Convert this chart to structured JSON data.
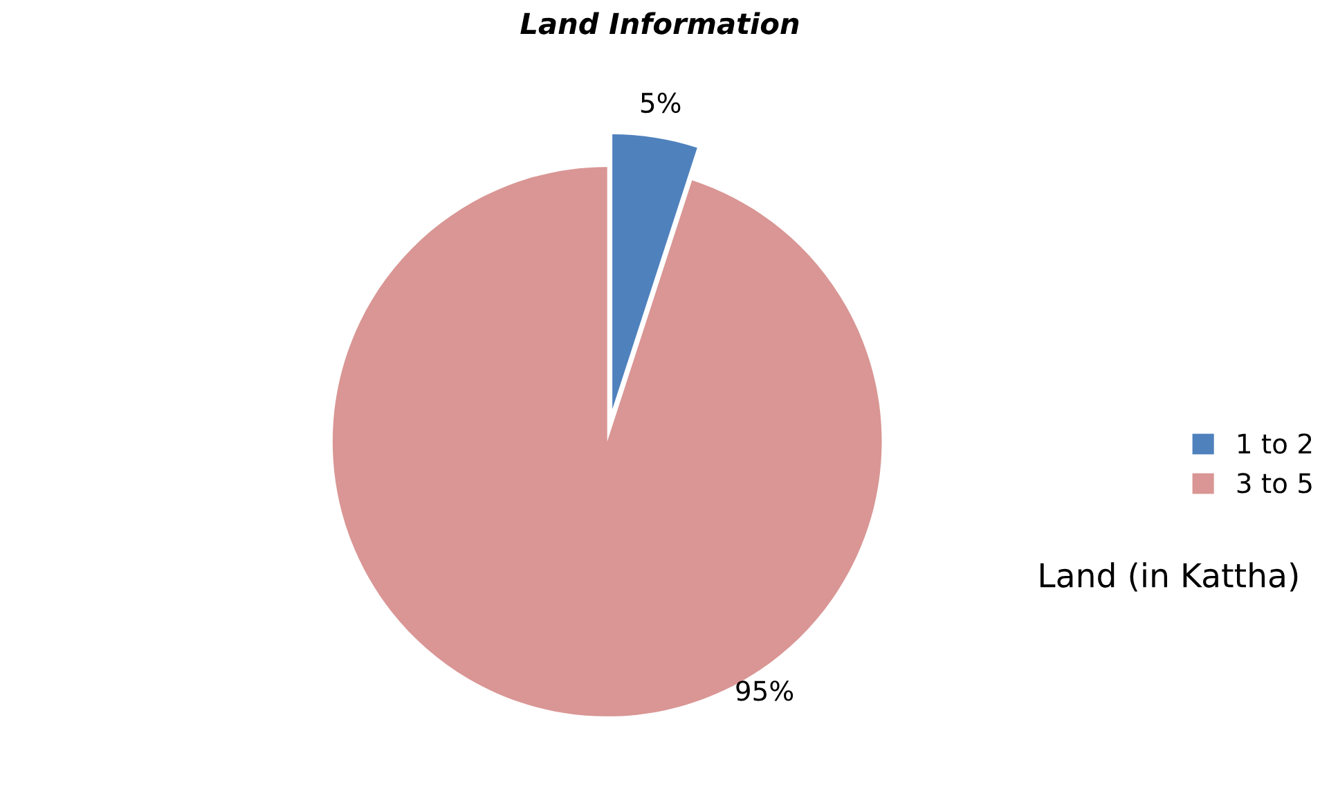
{
  "chart_data": {
    "type": "pie",
    "title": "Land Information",
    "categories": [
      "1 to 2",
      "3 to 5"
    ],
    "values": [
      5,
      95
    ],
    "colors": [
      "#4f81bd",
      "#d99694"
    ],
    "value_labels": [
      "5%",
      "95%"
    ],
    "legend": "right",
    "legend_title": "Land (in Kattha)"
  }
}
